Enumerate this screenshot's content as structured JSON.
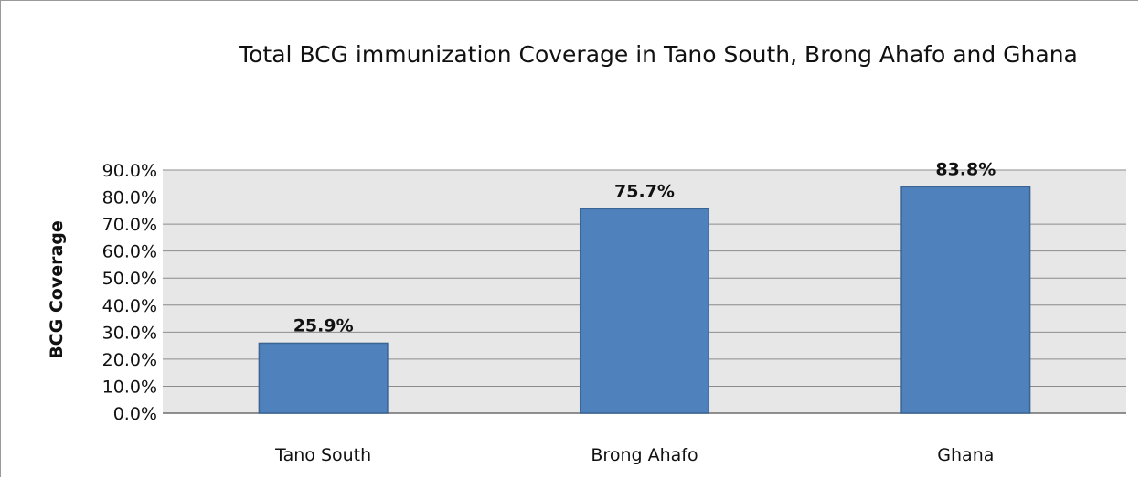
{
  "chart_data": {
    "type": "bar",
    "title": "Total BCG immunization Coverage in Tano South, Brong Ahafo and Ghana",
    "xlabel": "",
    "ylabel": "BCG Coverage",
    "categories": [
      "Tano South",
      "Brong Ahafo",
      "Ghana"
    ],
    "values": [
      25.9,
      75.7,
      83.8
    ],
    "data_labels": [
      "25.9%",
      "75.7%",
      "83.8%"
    ],
    "ylim": [
      0,
      90
    ],
    "y_ticks": [
      0,
      10,
      20,
      30,
      40,
      50,
      60,
      70,
      80,
      90
    ],
    "y_tick_labels": [
      "0.0%",
      "10.0%",
      "20.0%",
      "30.0%",
      "40.0%",
      "50.0%",
      "60.0%",
      "70.0%",
      "80.0%",
      "90.0%"
    ],
    "grid": true,
    "legend": "none",
    "colors": {
      "bar_fill": "#4f81bd",
      "bar_stroke": "#3a6494",
      "plot_background": "#e7e7e7",
      "gridline": "#8c8c8c"
    }
  }
}
